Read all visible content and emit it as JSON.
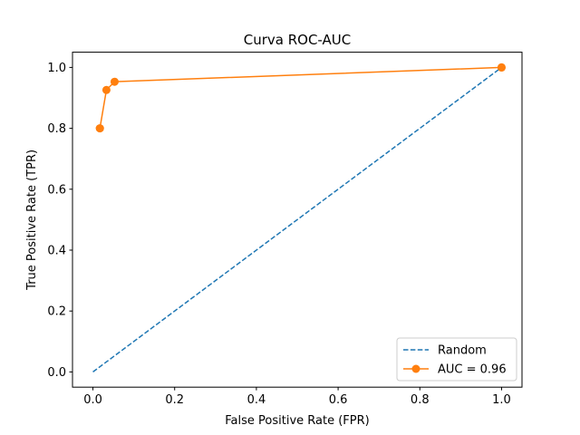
{
  "chart_data": {
    "type": "line",
    "title": "Curva ROC-AUC",
    "xlabel": "False Positive Rate (FPR)",
    "ylabel": "True Positive Rate (TPR)",
    "xlim": [
      -0.05,
      1.05
    ],
    "ylim": [
      -0.05,
      1.05
    ],
    "x_ticks": [
      0.0,
      0.2,
      0.4,
      0.6,
      0.8,
      1.0
    ],
    "y_ticks": [
      0.0,
      0.2,
      0.4,
      0.6,
      0.8,
      1.0
    ],
    "x_tick_labels": [
      "0.0",
      "0.2",
      "0.4",
      "0.6",
      "0.8",
      "1.0"
    ],
    "y_tick_labels": [
      "0.0",
      "0.2",
      "0.4",
      "0.6",
      "0.8",
      "1.0"
    ],
    "grid": false,
    "legend_placement": "lower-right",
    "series": [
      {
        "name": "Random",
        "style": "dashed",
        "markers": false,
        "color": "#1f77b4",
        "x": [
          0.0,
          1.0
        ],
        "y": [
          0.0,
          1.0
        ]
      },
      {
        "name": "AUC = 0.96",
        "style": "solid",
        "markers": true,
        "color": "#ff7f0e",
        "x": [
          0.017,
          0.017,
          0.033,
          0.053,
          1.0,
          1.0
        ],
        "y": [
          0.8,
          0.8,
          0.926,
          0.953,
          1.0,
          1.0
        ]
      }
    ]
  }
}
